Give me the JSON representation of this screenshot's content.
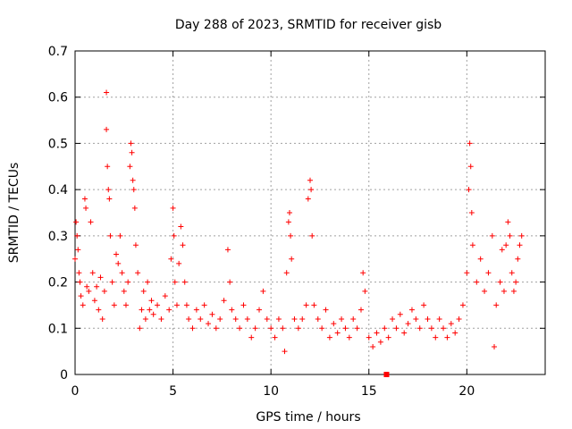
{
  "chart_data": {
    "type": "scatter",
    "title": "Day 288 of 2023, SRMTID for receiver gisb",
    "xlabel": "GPS time / hours",
    "ylabel": "SRMTID / TECUs",
    "xlim": [
      0,
      24
    ],
    "ylim": [
      0,
      0.7
    ],
    "xticks": [
      0,
      5,
      10,
      15,
      20
    ],
    "yticks": [
      0,
      0.1,
      0.2,
      0.3,
      0.4,
      0.5,
      0.6,
      0.7
    ],
    "xtick_labels": [
      "0",
      "5",
      "10",
      "15",
      "20"
    ],
    "ytick_labels": [
      "0",
      "0.1",
      "0.2",
      "0.3",
      "0.4",
      "0.5",
      "0.6",
      "0.7"
    ],
    "grid": true,
    "marker": "+",
    "color": "#ff0000",
    "series": [
      {
        "name": "SRMTID",
        "points": [
          [
            0.0,
            0.25
          ],
          [
            0.05,
            0.33
          ],
          [
            0.1,
            0.3
          ],
          [
            0.15,
            0.27
          ],
          [
            0.2,
            0.22
          ],
          [
            0.25,
            0.2
          ],
          [
            0.3,
            0.17
          ],
          [
            0.4,
            0.15
          ],
          [
            0.5,
            0.38
          ],
          [
            0.55,
            0.36
          ],
          [
            0.6,
            0.19
          ],
          [
            0.7,
            0.18
          ],
          [
            0.8,
            0.33
          ],
          [
            0.9,
            0.22
          ],
          [
            1.0,
            0.16
          ],
          [
            1.1,
            0.19
          ],
          [
            1.2,
            0.14
          ],
          [
            1.3,
            0.21
          ],
          [
            1.4,
            0.12
          ],
          [
            1.5,
            0.18
          ],
          [
            1.6,
            0.61
          ],
          [
            1.6,
            0.53
          ],
          [
            1.65,
            0.45
          ],
          [
            1.7,
            0.4
          ],
          [
            1.75,
            0.38
          ],
          [
            1.8,
            0.3
          ],
          [
            1.9,
            0.2
          ],
          [
            2.0,
            0.15
          ],
          [
            2.1,
            0.26
          ],
          [
            2.2,
            0.24
          ],
          [
            2.3,
            0.3
          ],
          [
            2.4,
            0.22
          ],
          [
            2.5,
            0.18
          ],
          [
            2.6,
            0.15
          ],
          [
            2.7,
            0.2
          ],
          [
            2.8,
            0.45
          ],
          [
            2.85,
            0.5
          ],
          [
            2.9,
            0.48
          ],
          [
            2.95,
            0.42
          ],
          [
            3.0,
            0.4
          ],
          [
            3.05,
            0.36
          ],
          [
            3.1,
            0.28
          ],
          [
            3.2,
            0.22
          ],
          [
            3.3,
            0.1
          ],
          [
            3.4,
            0.14
          ],
          [
            3.5,
            0.18
          ],
          [
            3.6,
            0.12
          ],
          [
            3.7,
            0.2
          ],
          [
            3.8,
            0.14
          ],
          [
            3.9,
            0.16
          ],
          [
            4.0,
            0.13
          ],
          [
            4.2,
            0.15
          ],
          [
            4.4,
            0.12
          ],
          [
            4.6,
            0.17
          ],
          [
            4.8,
            0.14
          ],
          [
            4.9,
            0.25
          ],
          [
            5.0,
            0.36
          ],
          [
            5.05,
            0.3
          ],
          [
            5.1,
            0.2
          ],
          [
            5.2,
            0.15
          ],
          [
            5.3,
            0.24
          ],
          [
            5.4,
            0.32
          ],
          [
            5.5,
            0.28
          ],
          [
            5.6,
            0.2
          ],
          [
            5.7,
            0.15
          ],
          [
            5.8,
            0.12
          ],
          [
            6.0,
            0.1
          ],
          [
            6.2,
            0.14
          ],
          [
            6.4,
            0.12
          ],
          [
            6.6,
            0.15
          ],
          [
            6.8,
            0.11
          ],
          [
            7.0,
            0.13
          ],
          [
            7.2,
            0.1
          ],
          [
            7.4,
            0.12
          ],
          [
            7.6,
            0.16
          ],
          [
            7.8,
            0.27
          ],
          [
            7.9,
            0.2
          ],
          [
            8.0,
            0.14
          ],
          [
            8.2,
            0.12
          ],
          [
            8.4,
            0.1
          ],
          [
            8.6,
            0.15
          ],
          [
            8.8,
            0.12
          ],
          [
            9.0,
            0.08
          ],
          [
            9.2,
            0.1
          ],
          [
            9.4,
            0.14
          ],
          [
            9.6,
            0.18
          ],
          [
            9.8,
            0.12
          ],
          [
            10.0,
            0.1
          ],
          [
            10.2,
            0.08
          ],
          [
            10.4,
            0.12
          ],
          [
            10.6,
            0.1
          ],
          [
            10.7,
            0.05
          ],
          [
            10.8,
            0.22
          ],
          [
            10.9,
            0.33
          ],
          [
            10.95,
            0.35
          ],
          [
            11.0,
            0.3
          ],
          [
            11.05,
            0.25
          ],
          [
            11.2,
            0.12
          ],
          [
            11.4,
            0.1
          ],
          [
            11.6,
            0.12
          ],
          [
            11.8,
            0.15
          ],
          [
            11.9,
            0.38
          ],
          [
            12.0,
            0.42
          ],
          [
            12.05,
            0.4
          ],
          [
            12.1,
            0.3
          ],
          [
            12.2,
            0.15
          ],
          [
            12.4,
            0.12
          ],
          [
            12.6,
            0.1
          ],
          [
            12.8,
            0.14
          ],
          [
            13.0,
            0.08
          ],
          [
            13.2,
            0.11
          ],
          [
            13.4,
            0.09
          ],
          [
            13.6,
            0.12
          ],
          [
            13.8,
            0.1
          ],
          [
            14.0,
            0.08
          ],
          [
            14.2,
            0.12
          ],
          [
            14.4,
            0.1
          ],
          [
            14.6,
            0.14
          ],
          [
            14.7,
            0.22
          ],
          [
            14.8,
            0.18
          ],
          [
            15.0,
            0.08
          ],
          [
            15.2,
            0.06
          ],
          [
            15.4,
            0.09
          ],
          [
            15.6,
            0.07
          ],
          [
            15.8,
            0.1
          ],
          [
            16.0,
            0.08
          ],
          [
            16.2,
            0.12
          ],
          [
            16.4,
            0.1
          ],
          [
            16.6,
            0.13
          ],
          [
            16.8,
            0.09
          ],
          [
            17.0,
            0.11
          ],
          [
            17.2,
            0.14
          ],
          [
            17.4,
            0.12
          ],
          [
            17.6,
            0.1
          ],
          [
            17.8,
            0.15
          ],
          [
            18.0,
            0.12
          ],
          [
            18.2,
            0.1
          ],
          [
            18.4,
            0.08
          ],
          [
            18.6,
            0.12
          ],
          [
            18.8,
            0.1
          ],
          [
            19.0,
            0.08
          ],
          [
            19.2,
            0.11
          ],
          [
            19.4,
            0.09
          ],
          [
            19.6,
            0.12
          ],
          [
            19.8,
            0.15
          ],
          [
            20.0,
            0.22
          ],
          [
            20.1,
            0.4
          ],
          [
            20.15,
            0.5
          ],
          [
            20.2,
            0.45
          ],
          [
            20.25,
            0.35
          ],
          [
            20.3,
            0.28
          ],
          [
            20.5,
            0.2
          ],
          [
            20.7,
            0.25
          ],
          [
            20.9,
            0.18
          ],
          [
            21.1,
            0.22
          ],
          [
            21.3,
            0.3
          ],
          [
            21.4,
            0.06
          ],
          [
            21.5,
            0.15
          ],
          [
            21.7,
            0.2
          ],
          [
            21.8,
            0.27
          ],
          [
            21.9,
            0.18
          ],
          [
            22.0,
            0.28
          ],
          [
            22.1,
            0.33
          ],
          [
            22.2,
            0.3
          ],
          [
            22.3,
            0.22
          ],
          [
            22.4,
            0.18
          ],
          [
            22.5,
            0.2
          ],
          [
            22.6,
            0.25
          ],
          [
            22.7,
            0.28
          ],
          [
            22.8,
            0.3
          ]
        ]
      },
      {
        "name": "marker",
        "points": [
          [
            15.9,
            0.0
          ]
        ]
      }
    ]
  }
}
